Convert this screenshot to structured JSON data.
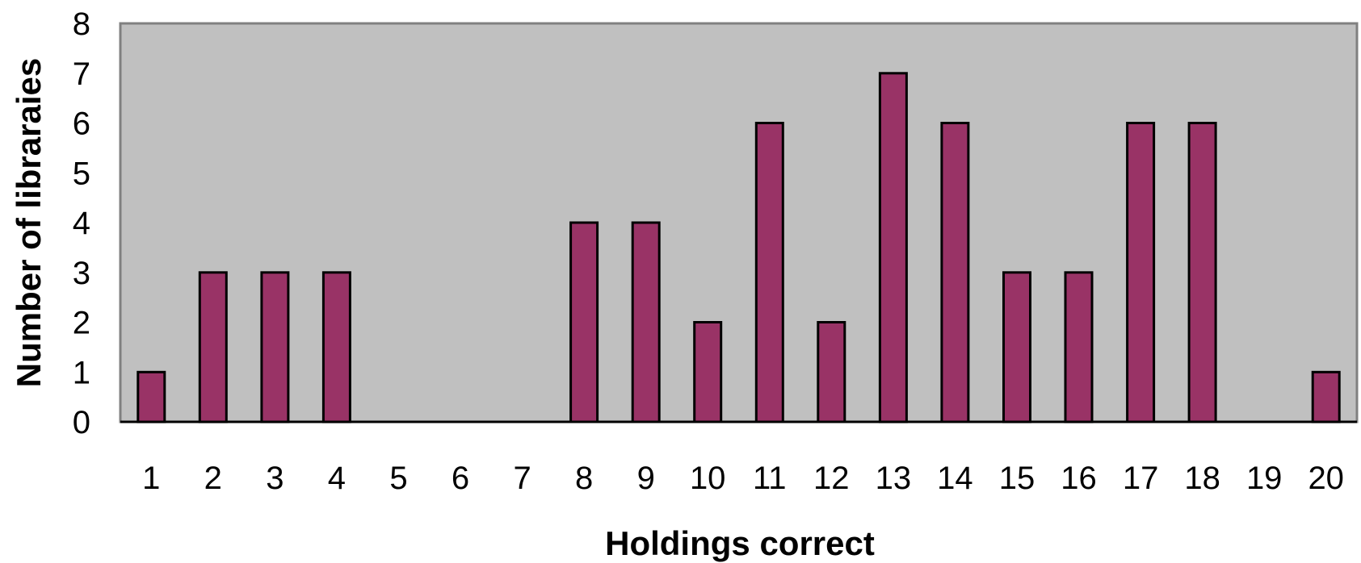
{
  "chart_data": {
    "type": "bar",
    "title": "",
    "xlabel": "Holdings correct",
    "ylabel": "Number of libraraies",
    "categories": [
      "1",
      "2",
      "3",
      "4",
      "5",
      "6",
      "7",
      "8",
      "9",
      "10",
      "11",
      "12",
      "13",
      "14",
      "15",
      "16",
      "17",
      "18",
      "19",
      "20"
    ],
    "values": [
      1,
      3,
      3,
      3,
      0,
      0,
      0,
      4,
      4,
      2,
      6,
      2,
      7,
      6,
      3,
      3,
      6,
      6,
      0,
      1
    ],
    "ylim": [
      0,
      8
    ],
    "yticks": [
      "0",
      "1",
      "2",
      "3",
      "4",
      "5",
      "6",
      "7",
      "8"
    ],
    "grid": false,
    "legend": "none",
    "colors": {
      "bar": "#993366",
      "bar_edge": "#000000",
      "plot_background": "#c0c0c0",
      "plot_border": "#808080",
      "page_background": "#ffffff"
    }
  }
}
